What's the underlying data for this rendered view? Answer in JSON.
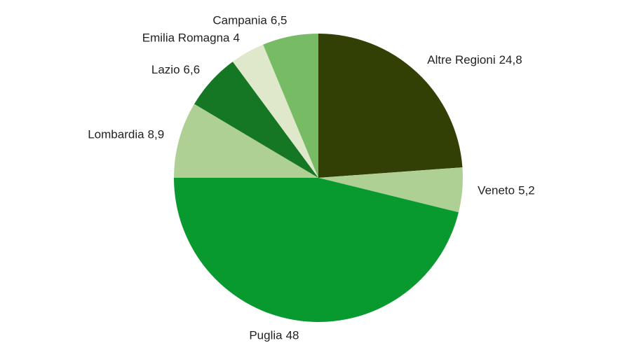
{
  "chart_data": {
    "type": "pie",
    "categories": [
      "Altre Regioni",
      "Veneto",
      "Puglia",
      "Lombardia",
      "Lazio",
      "Emilia Romagna",
      "Campania"
    ],
    "values": [
      24.8,
      5.2,
      48,
      8.9,
      6.6,
      4,
      6.5
    ],
    "value_labels": [
      "24,8",
      "5,2",
      "48",
      "8,9",
      "6,6",
      "4",
      "6,5"
    ],
    "colors": [
      "#334005",
      "#aed094",
      "#08992f",
      "#aed094",
      "#157623",
      "#dfe8cb",
      "#78bb65"
    ]
  }
}
